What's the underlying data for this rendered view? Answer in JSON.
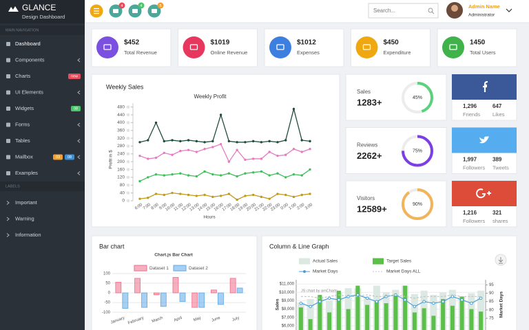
{
  "sidebar": {
    "brand": "GLANCE",
    "tagline": "Design Dashboard",
    "section_main": "MAIN NAVIGATION",
    "items": [
      {
        "label": "Dashboard"
      },
      {
        "label": "Components"
      },
      {
        "label": "Charts",
        "badges": [
          {
            "text": "new",
            "color": "#e84c5c"
          }
        ]
      },
      {
        "label": "UI Elements"
      },
      {
        "label": "Widgets",
        "badges": [
          {
            "text": "08",
            "color": "#4cc46a"
          }
        ]
      },
      {
        "label": "Forms"
      },
      {
        "label": "Tables"
      },
      {
        "label": "Mailbox",
        "badges": [
          {
            "text": "03",
            "color": "#f0a030"
          },
          {
            "text": "08",
            "color": "#3d8fd6"
          }
        ]
      },
      {
        "label": "Examples"
      }
    ],
    "section_labels": "LABELS",
    "labels": [
      "Important",
      "Warning",
      "Information"
    ]
  },
  "header": {
    "notifications": [
      {
        "count": "4",
        "color": "#e84c5c"
      },
      {
        "count": "4",
        "color": "#4cc46a"
      },
      {
        "count": "5",
        "color": "#f0a030"
      }
    ],
    "search_placeholder": "Search...",
    "user_name": "Admin Name",
    "user_role": "Administrator"
  },
  "stats": [
    {
      "value": "$452",
      "label": "Total Revenue",
      "color": "#7b4fe0"
    },
    {
      "value": "$1019",
      "label": "Online Revenue",
      "color": "#e8375f"
    },
    {
      "value": "$1012",
      "label": "Expenses",
      "color": "#3d7fe0"
    },
    {
      "value": "$450",
      "label": "Expenditure",
      "color": "#f0a810"
    },
    {
      "value": "1450",
      "label": "Total Users",
      "color": "#3fb24a"
    }
  ],
  "metrics": [
    {
      "label": "Sales",
      "value": "1283+",
      "progress": 45,
      "progress_label": "45%",
      "color": "#5ad17a"
    },
    {
      "label": "Reviews",
      "value": "2262+",
      "progress": 75,
      "progress_label": "75%",
      "color": "#7b3fe4"
    },
    {
      "label": "Visitors",
      "value": "12589+",
      "progress": 90,
      "progress_label": "90%",
      "color": "#f2b45a"
    }
  ],
  "social": [
    {
      "color": "#3b5998",
      "stats": [
        {
          "value": "1,296",
          "label": "Friends"
        },
        {
          "value": "647",
          "label": "Likes"
        }
      ]
    },
    {
      "color": "#55acee",
      "stats": [
        {
          "value": "1,997",
          "label": "Followers"
        },
        {
          "value": "389",
          "label": "Tweets"
        }
      ]
    },
    {
      "color": "#dd4b39",
      "stats": [
        {
          "value": "1,216",
          "label": "Followers"
        },
        {
          "value": "321",
          "label": "shares"
        }
      ]
    }
  ],
  "chart_data": [
    {
      "type": "line",
      "panel_title": "Weekly Sales",
      "title": "Weekly Profit",
      "x_label": "Hours",
      "y_label": "Profit in $",
      "categories": [
        "6:00",
        "7:00",
        "8:00",
        "9:00",
        "10:00",
        "11:00",
        "12:00",
        "13:00",
        "14:00",
        "15:00",
        "16:00",
        "17:00",
        "18:00",
        "19:00",
        "20:00",
        "21:00",
        "22:00",
        "23:00",
        "0:00",
        "1:00",
        "2:00",
        "3:00"
      ],
      "series": [
        {
          "color": "#1f4d3a",
          "values": [
            300,
            310,
            400,
            305,
            310,
            305,
            310,
            305,
            300,
            305,
            440,
            305,
            300,
            300,
            305,
            300,
            305,
            300,
            310,
            470,
            310,
            305
          ]
        },
        {
          "color": "#e879c2",
          "values": [
            230,
            215,
            220,
            245,
            235,
            255,
            260,
            250,
            265,
            275,
            290,
            200,
            260,
            210,
            215,
            215,
            250,
            230,
            235,
            265,
            250,
            265
          ]
        },
        {
          "color": "#3fbf5a",
          "values": [
            100,
            120,
            135,
            130,
            135,
            140,
            130,
            125,
            150,
            135,
            130,
            140,
            125,
            140,
            145,
            150,
            130,
            140,
            120,
            135,
            130,
            160
          ]
        },
        {
          "color": "#c19a1b",
          "values": [
            10,
            15,
            35,
            30,
            40,
            35,
            30,
            25,
            30,
            20,
            25,
            35,
            5,
            25,
            30,
            20,
            10,
            35,
            30,
            20,
            30,
            35
          ]
        }
      ],
      "ylim": [
        0,
        500
      ],
      "yticks": [
        0,
        40,
        80,
        120,
        160,
        200,
        240,
        280,
        320,
        360,
        400,
        440,
        480
      ],
      "grid": false
    },
    {
      "type": "bar",
      "panel_title": "Bar chart",
      "title": "Chart.js Bar Chart",
      "categories": [
        "January",
        "February",
        "March",
        "April",
        "May",
        "June",
        "July"
      ],
      "series": [
        {
          "name": "Dataset 1",
          "color": "#ef6d8b",
          "values": [
            55,
            75,
            -10,
            80,
            -75,
            15,
            75
          ]
        },
        {
          "name": "Dataset 2",
          "color": "#5ea8e6",
          "values": [
            -80,
            -75,
            -70,
            -45,
            -75,
            -60,
            25
          ]
        }
      ],
      "ylim": [
        -110,
        110
      ],
      "yticks": [
        -100,
        -50,
        0,
        50,
        100
      ],
      "grid": true
    },
    {
      "type": "column-line",
      "panel_title": "Column & Line Graph",
      "credit": "JS chart by amCharts",
      "y_label": "Sales",
      "y2_label": "Market Days",
      "categories": [
        null,
        null,
        null,
        null,
        null,
        null,
        null,
        null,
        null,
        null,
        null,
        null,
        null,
        null,
        null,
        null,
        null,
        null,
        null,
        null
      ],
      "series": [
        {
          "name": "Actual Sales",
          "color": "#dce8e2",
          "type": "column",
          "values": [
            8800,
            9200,
            9500,
            9000,
            10000,
            10500,
            10500,
            9500,
            10800,
            10000,
            10300,
            10800,
            9800,
            10200,
            9700,
            10000,
            10300,
            9500,
            9900,
            10200
          ]
        },
        {
          "name": "Target Sales",
          "color": "#5cbf4a",
          "type": "column",
          "values": [
            8200,
            6800,
            9700,
            7600,
            10200,
            8000,
            10800,
            8500,
            9000,
            8700,
            9700,
            10800,
            7600,
            8100,
            7200,
            9200,
            8400,
            9500,
            8000,
            7700
          ]
        },
        {
          "name": "Market Days",
          "color": "#4a9fd8",
          "type": "line",
          "axis": "y2",
          "values": [
            84,
            82,
            85,
            87,
            86,
            88,
            89,
            87,
            85,
            88,
            89,
            86,
            82,
            85,
            84,
            85,
            88,
            86,
            84,
            87
          ]
        },
        {
          "name": "Market Days ALL",
          "color": "#c4c4c4",
          "type": "line",
          "dashed": true,
          "axis": "y2",
          "values": [
            88,
            88,
            87,
            88,
            89,
            88,
            88,
            89,
            88,
            88,
            89,
            88,
            87,
            88,
            88,
            88,
            89,
            88,
            88,
            88
          ]
        }
      ],
      "ylim": [
        5500,
        11500
      ],
      "yticks": [
        {
          "value": 6000,
          "label": "$6,000"
        },
        {
          "value": 7000,
          "label": "$7,000"
        },
        {
          "value": 8000,
          "label": "$8,000"
        },
        {
          "value": 9000,
          "label": "$9,000"
        },
        {
          "value": 10000,
          "label": "$10,000"
        },
        {
          "value": 11000,
          "label": "$11,000"
        }
      ],
      "y2lim": [
        68,
        98
      ],
      "y2ticks": [
        75,
        80,
        85,
        90,
        95
      ],
      "grid": true
    }
  ]
}
